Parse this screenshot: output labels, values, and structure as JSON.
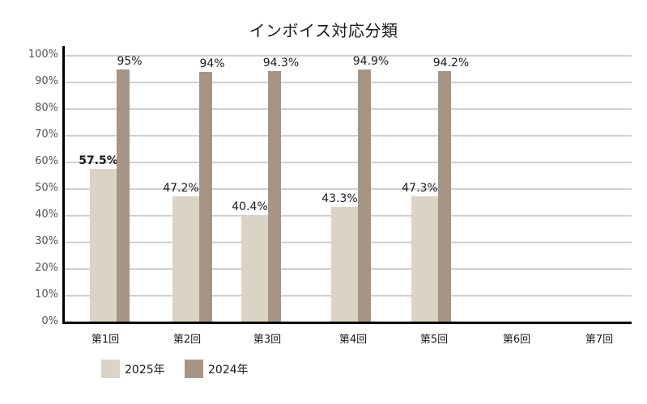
{
  "chart_data": {
    "type": "bar",
    "title": "インボイス対応分類",
    "xlabel": "",
    "ylabel": "",
    "ylim": [
      0,
      100
    ],
    "yticks": [
      "0%",
      "10%",
      "20%",
      "30%",
      "40%",
      "50%",
      "60%",
      "70%",
      "80%",
      "90%",
      "100%"
    ],
    "categories": [
      "第1回",
      "第2回",
      "第3回",
      "第4回",
      "第5回",
      "第6回",
      "第7回"
    ],
    "series": [
      {
        "name": "2025年",
        "color": "#dbd4c4",
        "values": [
          57.5,
          47.2,
          40.4,
          43.3,
          47.3,
          null,
          null
        ],
        "labels": [
          "57.5%",
          "47.2%",
          "40.4%",
          "43.3%",
          "47.3%",
          "",
          ""
        ]
      },
      {
        "name": "2024年",
        "color": "#a69585",
        "values": [
          95,
          94,
          94.3,
          94.9,
          94.2,
          null,
          null
        ],
        "labels": [
          "95%",
          "94%",
          "94.3%",
          "94.9%",
          "94.2%",
          "",
          ""
        ]
      }
    ],
    "grid": true,
    "legend_position": "bottom-left"
  }
}
